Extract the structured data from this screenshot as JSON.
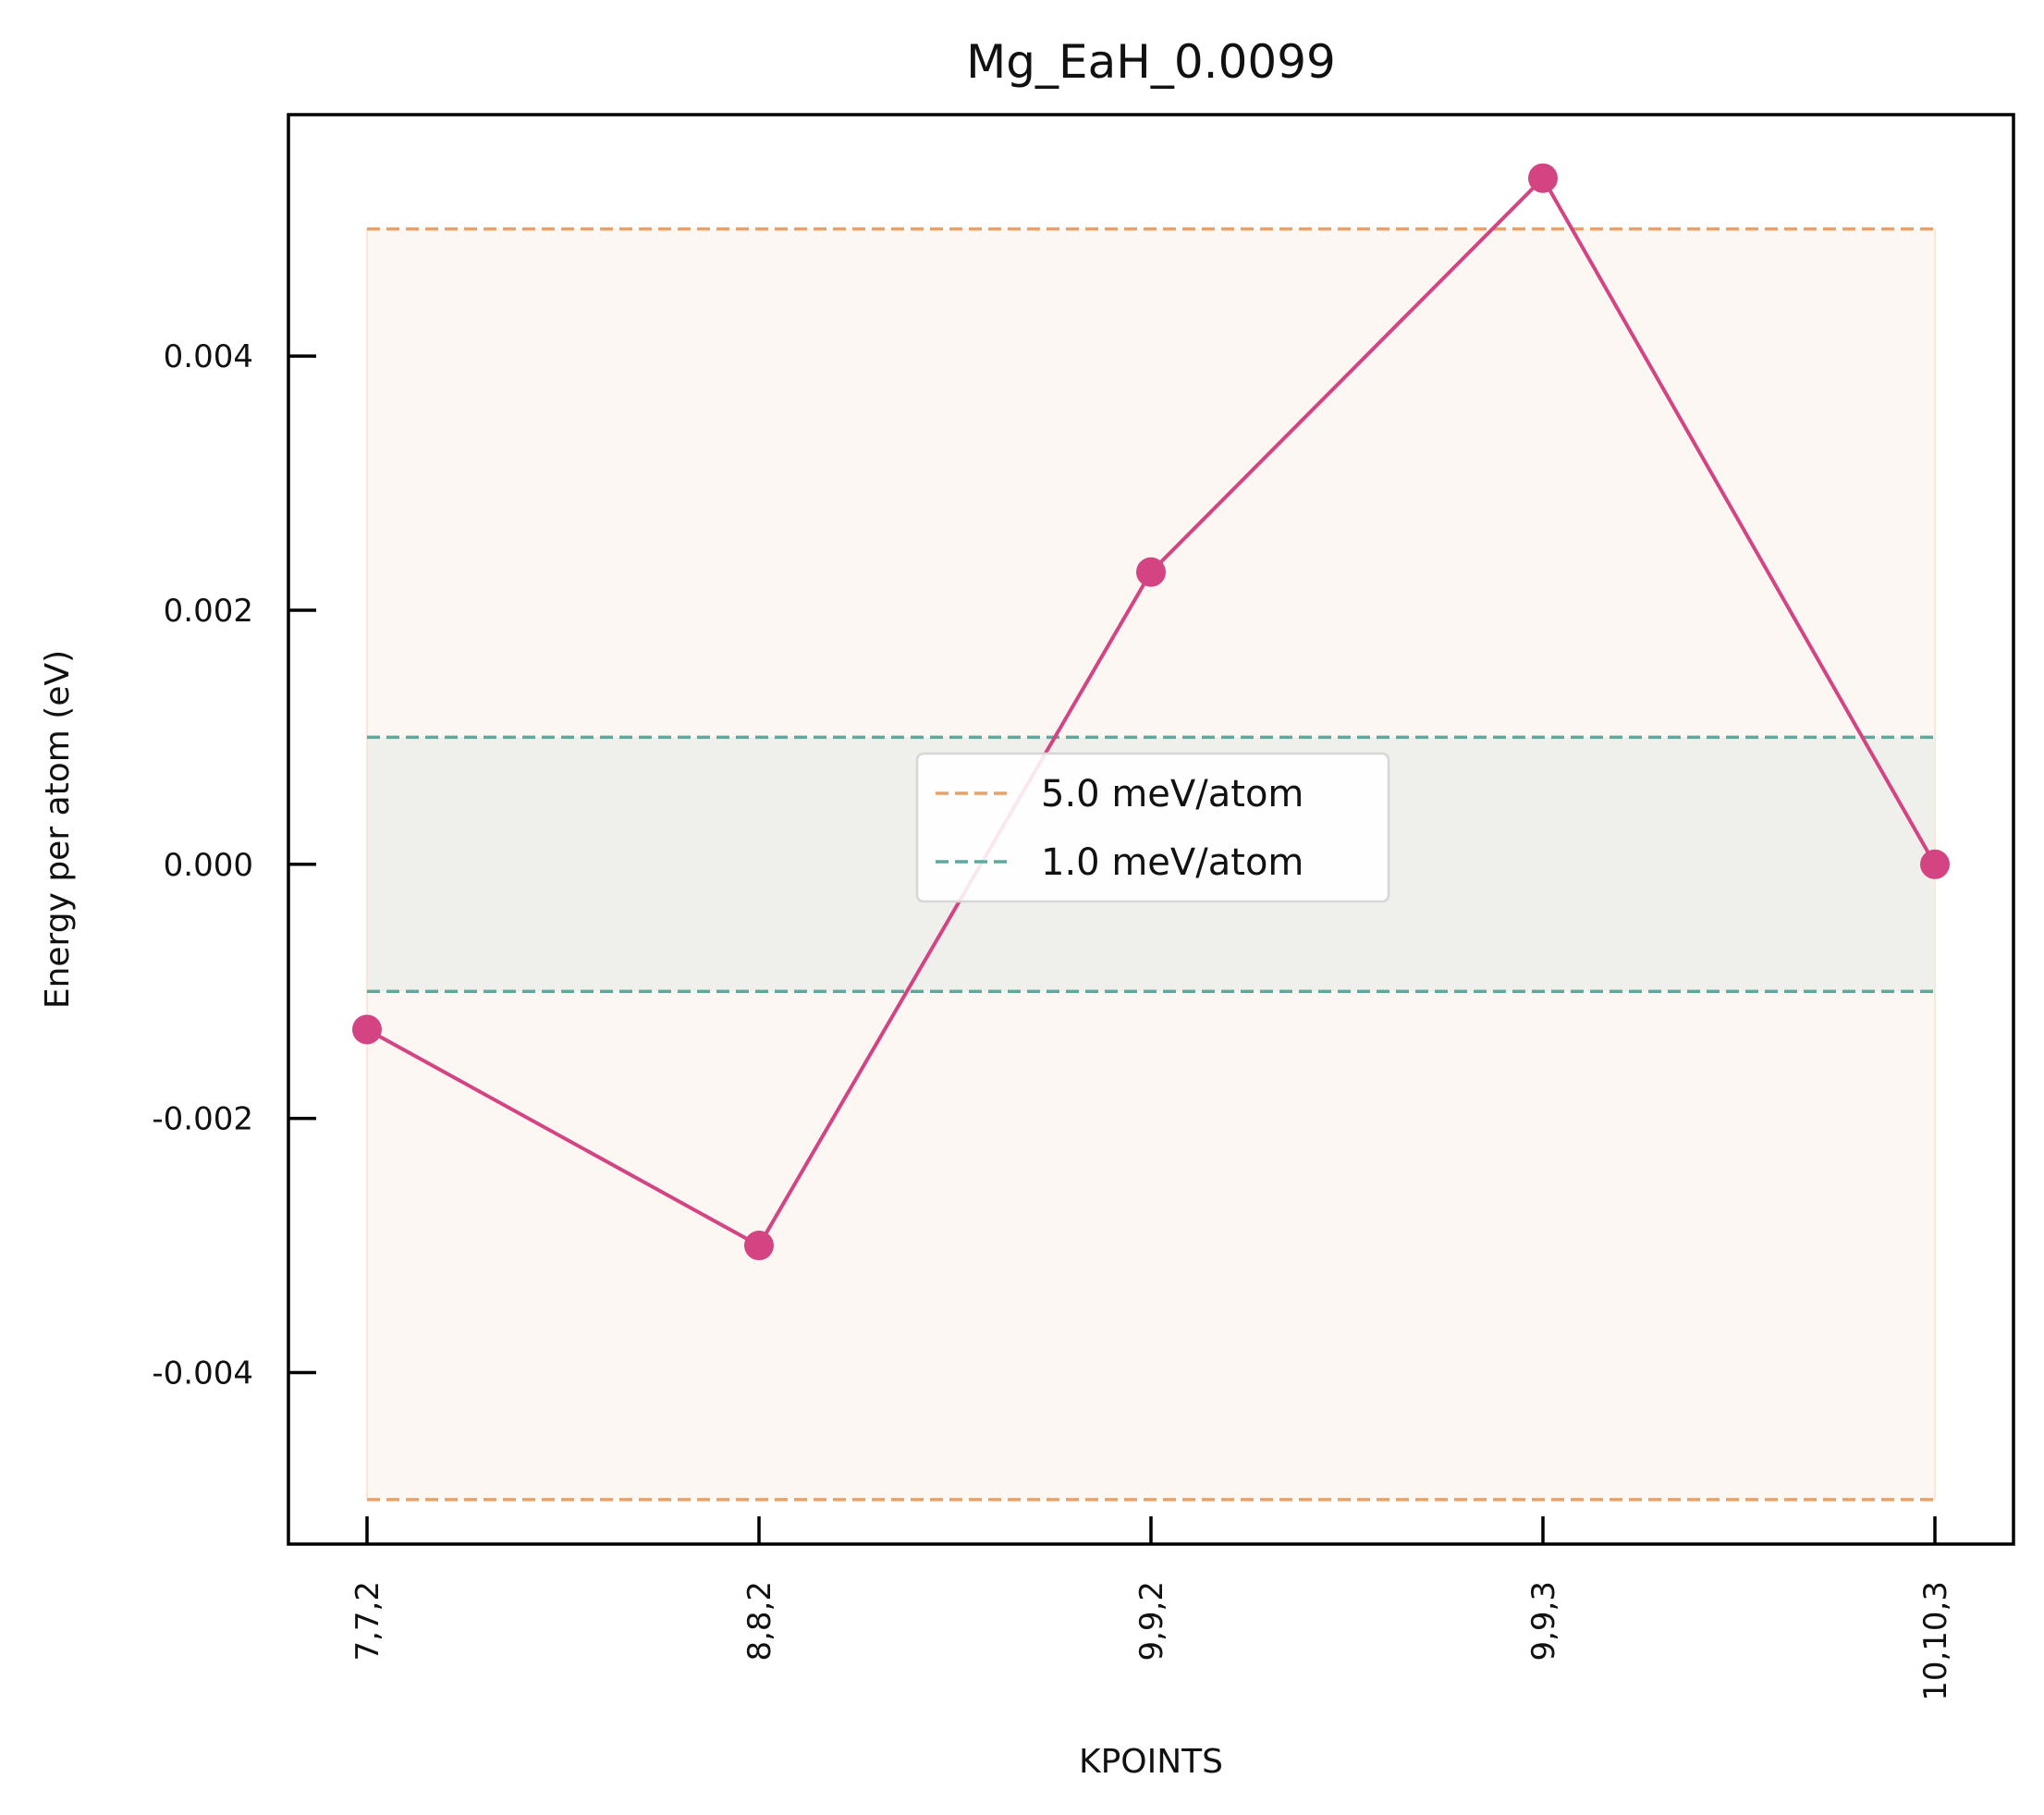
{
  "chart_data": {
    "type": "line",
    "title": "Mg_EaH_0.0099",
    "xlabel": "KPOINTS",
    "ylabel": "Energy per atom (eV)",
    "categories": [
      "7,7,2",
      "8,8,2",
      "9,9,2",
      "9,9,3",
      "10,10,3"
    ],
    "series": [
      {
        "values": [
          -0.0013,
          -0.003,
          0.0023,
          0.0054,
          0.0
        ],
        "color": "#d44482"
      }
    ],
    "yticks": [
      -0.004,
      -0.002,
      0.0,
      0.002,
      0.004
    ],
    "ytick_labels": [
      "-0.004",
      "-0.002",
      "0.000",
      "0.002",
      "0.004"
    ],
    "ylim": [
      -0.00535,
      0.0059
    ],
    "reference_bands": [
      {
        "name": "5.0 meV/atom",
        "value": 0.005,
        "color": "#e6a26a",
        "fill": "#fdf7f3"
      },
      {
        "name": "1.0 meV/atom",
        "value": 0.001,
        "color": "#5fa89d",
        "fill": "#eff0eb"
      }
    ],
    "legend_position": "center",
    "grid": false
  }
}
